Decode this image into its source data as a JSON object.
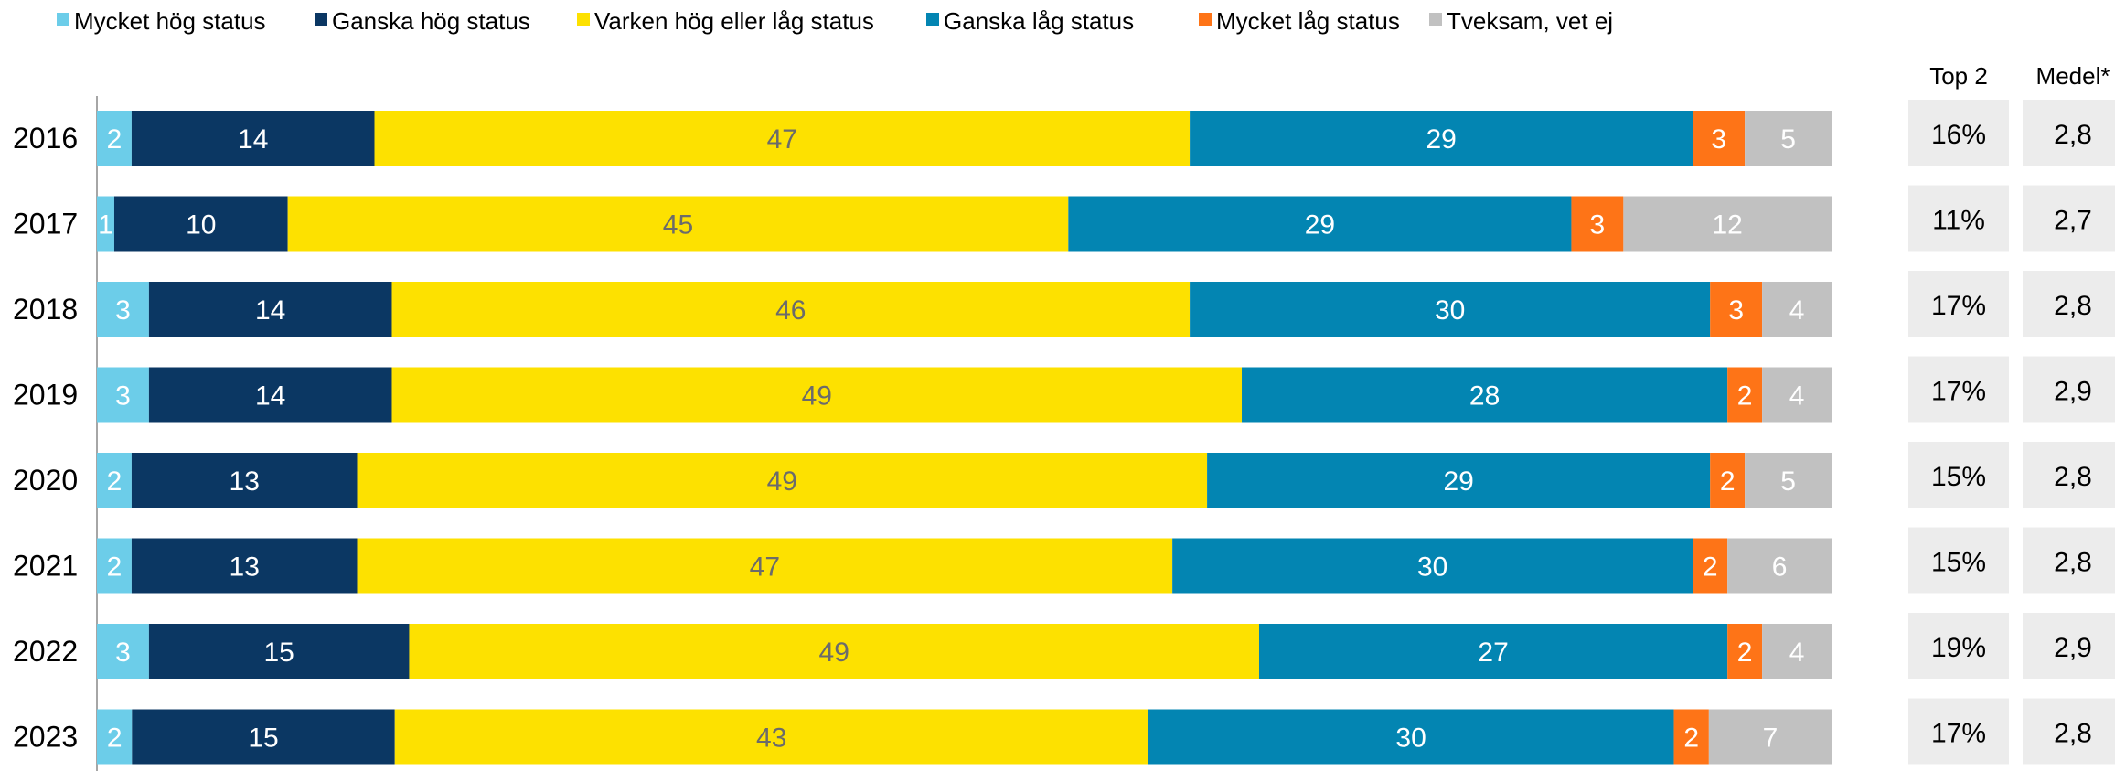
{
  "chart_data": {
    "type": "bar",
    "orientation": "horizontal",
    "stacked": true,
    "categories": [
      "2016",
      "2017",
      "2018",
      "2019",
      "2020",
      "2021",
      "2022",
      "2023"
    ],
    "series": [
      {
        "name": "Mycket hög status",
        "color": "#6ccde9",
        "label_color": "#ffffff",
        "values": [
          2,
          1,
          3,
          3,
          2,
          2,
          3,
          2
        ]
      },
      {
        "name": "Ganska hög status",
        "color": "#0b3763",
        "label_color": "#ffffff",
        "values": [
          14,
          10,
          14,
          14,
          13,
          13,
          15,
          15
        ]
      },
      {
        "name": "Varken hög eller låg status",
        "color": "#fde100",
        "label_color": "#6b6b6b",
        "values": [
          47,
          45,
          46,
          49,
          49,
          47,
          49,
          43
        ]
      },
      {
        "name": "Ganska låg status",
        "color": "#0385b2",
        "label_color": "#ffffff",
        "values": [
          29,
          29,
          30,
          28,
          29,
          30,
          27,
          30
        ]
      },
      {
        "name": "Mycket låg status",
        "color": "#fe7417",
        "label_color": "#ffffff",
        "values": [
          3,
          3,
          3,
          2,
          2,
          2,
          2,
          2
        ]
      },
      {
        "name": "Tveksam, vet ej",
        "color": "#c1c1c1",
        "label_color": "#ffffff",
        "values": [
          5,
          12,
          4,
          4,
          5,
          6,
          4,
          7
        ]
      }
    ],
    "side_columns": [
      {
        "header": "Top 2",
        "values": [
          "16%",
          "11%",
          "17%",
          "17%",
          "15%",
          "15%",
          "19%",
          "17%"
        ]
      },
      {
        "header": "Medel*",
        "values": [
          "2,8",
          "2,7",
          "2,8",
          "2,9",
          "2,8",
          "2,8",
          "2,9",
          "2,8"
        ]
      }
    ],
    "side_box_color": "#ececec",
    "axis_line_color": "#a6a6a6",
    "legend_position": "top",
    "grid": false
  }
}
